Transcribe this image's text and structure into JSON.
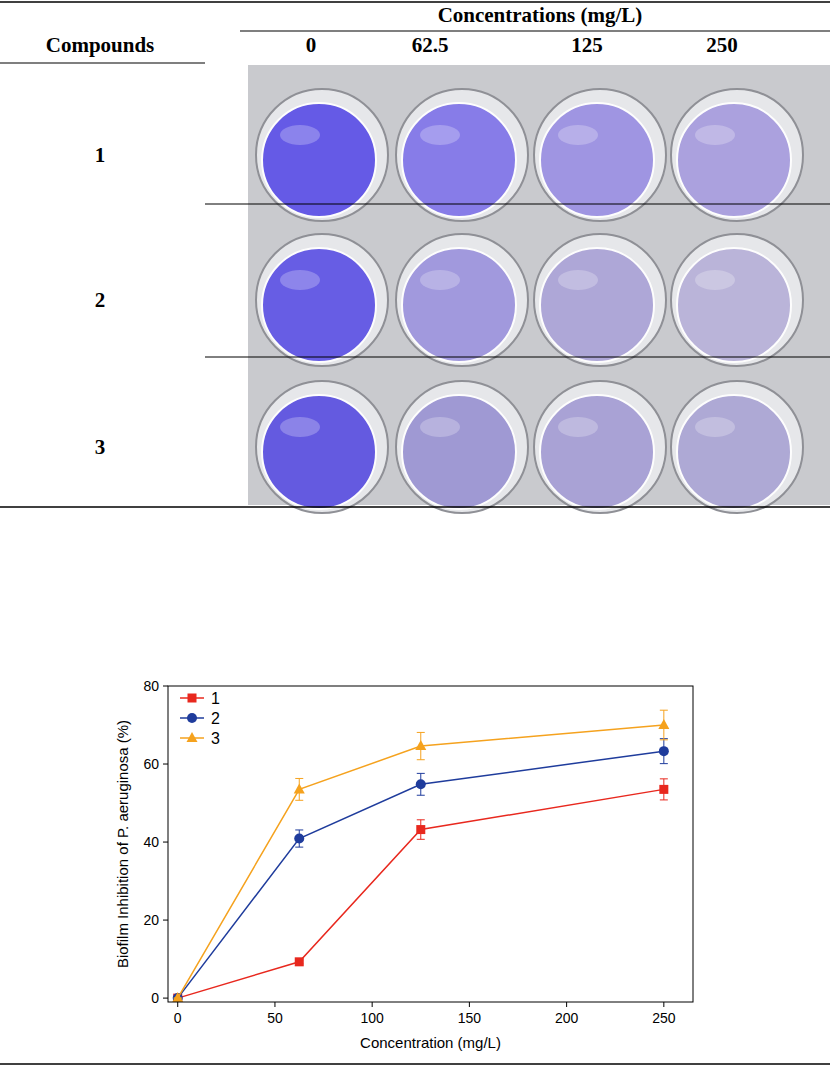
{
  "table": {
    "header": "Compounds",
    "column_header": "Concentrations (mg/L)",
    "columns": [
      "0",
      "62.5",
      "125",
      "250"
    ],
    "rows": [
      "1",
      "2",
      "3"
    ]
  },
  "chart_data": {
    "type": "line",
    "x_label": "Concentration (mg/L)",
    "y_label": "Biofilm Inhibition of P. aeruginosa (%)",
    "x": [
      0,
      62.5,
      125,
      250
    ],
    "series": [
      {
        "name": "1",
        "color": "#e8281e",
        "marker": "square",
        "values": [
          0,
          9.3,
          43.2,
          53.5
        ],
        "errors": [
          0,
          0.5,
          2.5,
          2.7
        ]
      },
      {
        "name": "2",
        "color": "#1f3c9c",
        "marker": "circle",
        "values": [
          0,
          40.9,
          54.8,
          63.3
        ],
        "errors": [
          0,
          2.2,
          2.8,
          3.2
        ]
      },
      {
        "name": "3",
        "color": "#f5a21e",
        "marker": "triangle",
        "values": [
          0,
          53.5,
          64.6,
          70.0
        ],
        "errors": [
          0,
          2.8,
          3.5,
          3.8
        ]
      }
    ],
    "xlim": [
      -5,
      265
    ],
    "ylim": [
      -1,
      80
    ],
    "xticks": [
      0,
      50,
      100,
      150,
      200,
      250
    ],
    "yticks": [
      0,
      20,
      40,
      60,
      80
    ],
    "legend": "upper-left",
    "grid": false
  }
}
